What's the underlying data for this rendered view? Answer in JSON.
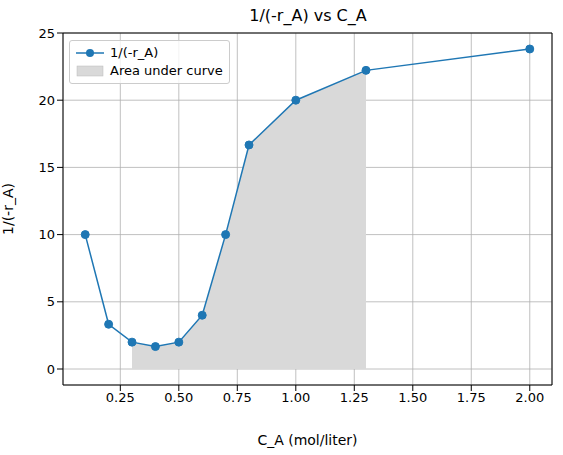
{
  "chart_data": {
    "type": "line",
    "title": "1/(-r_A) vs C_A",
    "x_label": "C_A (mol/liter)",
    "y_label": "1/(-r_A)",
    "x": [
      0.1,
      0.2,
      0.3,
      0.4,
      0.5,
      0.6,
      0.7,
      0.8,
      1.0,
      1.3,
      2.0
    ],
    "series": [
      {
        "name": "1/(-r_A)",
        "type": "line",
        "color": "#1f77b4",
        "marker": "circle",
        "line_style": "solid",
        "values": [
          10,
          3.33,
          2,
          1.67,
          2,
          4,
          10,
          16.67,
          20,
          22.22,
          23.81
        ]
      },
      {
        "name": "Area under curve",
        "type": "area",
        "color": "#d9d9d9",
        "values": [
          null,
          null,
          2,
          1.67,
          2,
          4,
          10,
          16.67,
          20,
          22.22,
          null
        ]
      }
    ],
    "xlim": [
      0.005,
      2.095
    ],
    "ylim": [
      -1.19,
      25
    ],
    "xticks": [
      0.25,
      {
        "value": 0.5,
        "label": "0.50"
      },
      0.75,
      {
        "value": 1,
        "label": "1.00"
      },
      1.25,
      {
        "value": 1.5,
        "label": "1.50"
      },
      1.75,
      {
        "value": 2,
        "label": "2.00"
      }
    ],
    "yticks": [
      0,
      5,
      10,
      15,
      20,
      25
    ],
    "grid": true,
    "legend": "upper left"
  }
}
